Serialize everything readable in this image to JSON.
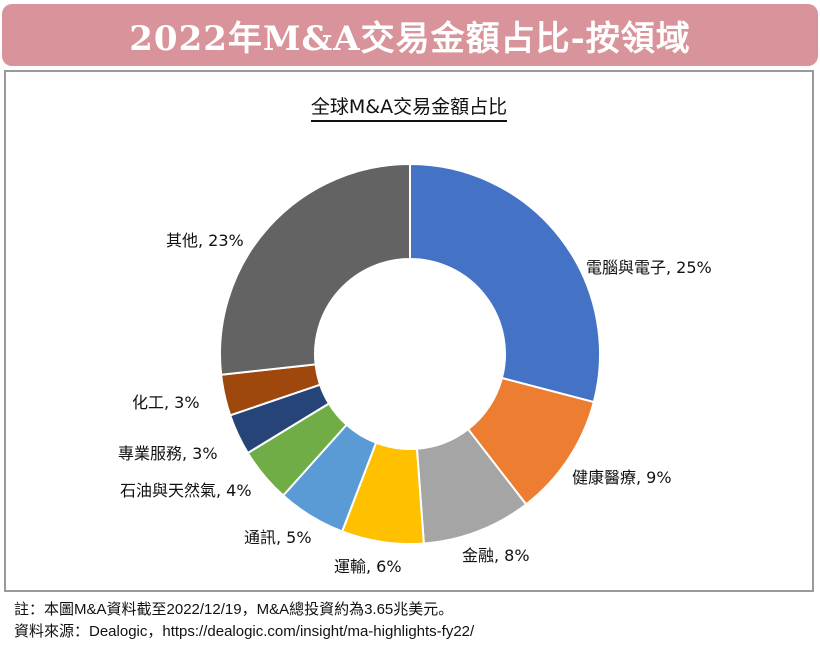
{
  "header": {
    "title": "2022年M&A交易金額占比-按領域"
  },
  "chart_data": {
    "type": "pie",
    "title": "全球M&A交易金額占比",
    "donut": true,
    "series": [
      {
        "name": "電腦與電子",
        "value": 25,
        "label": "電腦與電子, 25%",
        "color": "#4472c4"
      },
      {
        "name": "健康醫療",
        "value": 9,
        "label": "健康醫療, 9%",
        "color": "#ed7d31"
      },
      {
        "name": "金融",
        "value": 8,
        "label": "金融, 8%",
        "color": "#a5a5a5"
      },
      {
        "name": "運輸",
        "value": 6,
        "label": "運輸, 6%",
        "color": "#ffc000"
      },
      {
        "name": "通訊",
        "value": 5,
        "label": "通訊, 5%",
        "color": "#5b9bd5"
      },
      {
        "name": "石油與天然氣",
        "value": 4,
        "label": "石油與天然氣, 4%",
        "color": "#70ad47"
      },
      {
        "name": "專業服務",
        "value": 3,
        "label": "專業服務, 3%",
        "color": "#264478"
      },
      {
        "name": "化工",
        "value": 3,
        "label": "化工, 3%",
        "color": "#9e480e"
      },
      {
        "name": "其他",
        "value": 23,
        "label": "其他, 23%",
        "color": "#636363"
      }
    ]
  },
  "footnotes": {
    "note": "註：本圖M&A資料截至2022/12/19，M&A總投資約為3.65兆美元。",
    "source": "資料來源：Dealogic，https://dealogic.com/insight/ma-highlights-fy22/"
  }
}
